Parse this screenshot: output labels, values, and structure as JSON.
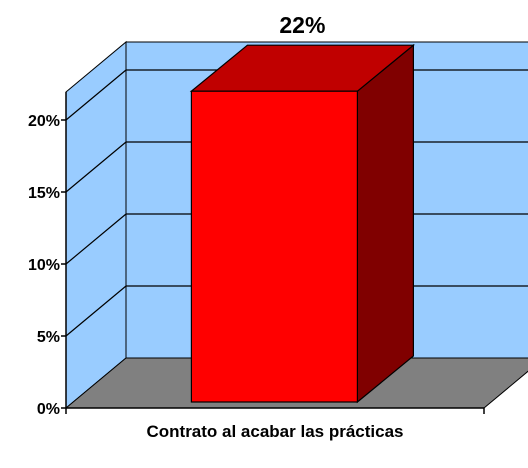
{
  "chart_data": {
    "type": "bar",
    "categories": [
      "Contrato al acabar las prácticas"
    ],
    "values": [
      22
    ],
    "value_labels": [
      "22%"
    ],
    "ylim": [
      0,
      20
    ],
    "yticks": [
      0,
      5,
      10,
      15,
      20
    ],
    "ytick_labels": [
      "0%",
      "5%",
      "10%",
      "15%",
      "20%"
    ],
    "title": "",
    "xlabel": "",
    "ylabel": "",
    "grid": true,
    "legend": "none",
    "style": "3d",
    "colors": {
      "bar_front": "#FF0000",
      "bar_top": "#C00000",
      "bar_side": "#800000",
      "wall": "#99CCFF",
      "floor": "#808080"
    }
  }
}
